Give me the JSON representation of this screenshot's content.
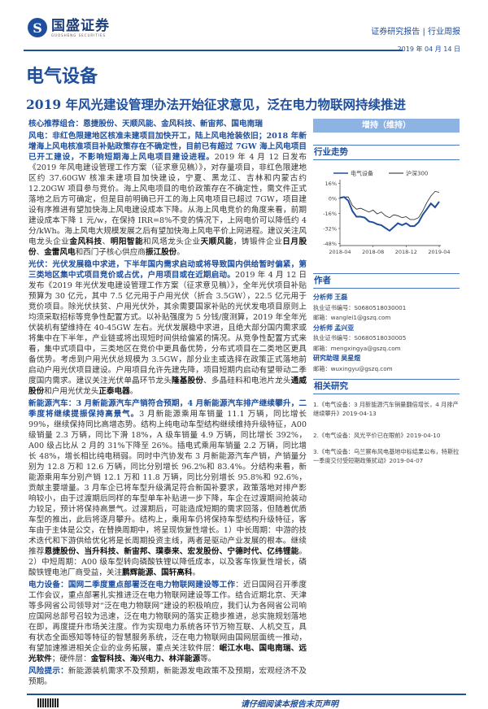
{
  "header": {
    "logo_cn": "国盛证券",
    "logo_en": "GUOSHENG SECURITIES",
    "report_type": "证券研究报告 | 行业周报",
    "date": "2019 年 04 月 14 日"
  },
  "industry": "电气设备",
  "headline": "2019 年风光建设管理办法开始征求意见，泛在电力物联网持续推进",
  "rating": "增持（维持）",
  "body": [
    [
      [
        "h",
        "核心推荐组合：恩捷股份、天顺风能、金风科技、新宙邦、国电南瑞"
      ]
    ],
    [
      [
        "h",
        "风电：非红色限建地区核准未建项目加快开工，陆上风电抢装依旧；2018 年新增海上风电核准项目补贴政策存在不确定性，目前已有超过 7GW 海上风电项目已开工建设，不影响短期海上风电项目建设进程。"
      ],
      [
        "n",
        "2019 年 4 月 12 日发布《2019 年风电建设管理工作方案（征求意见稿）》，对存量项目，非红色限建地区约 37.60GW 核准未建项目加快建设，宁夏、黑龙江、吉林和内蒙古约 12.20GW 项目参与竞价。海上风电项目的电价政策存在不确定性，需文件正式落地之后方可确定，但是目前明确已开工的海上风电项目已超过 7GW，项目建设有序推进有望加快海上风电建设成本下降。从海上风电竞价的角度来看，前期建设成本下降 1 元/w，在保持 IRR=8%不变的情况下，上网电价可以降低约 4 分/kWh。海上风电大规模发展之后有望加快海上风电平价上网进程。建议关注风电龙头企业"
      ],
      [
        "b",
        "金风科技"
      ],
      [
        "n",
        "、"
      ],
      [
        "b",
        "明阳智能"
      ],
      [
        "n",
        "和风塔龙头企业"
      ],
      [
        "b",
        "天顺风能"
      ],
      [
        "n",
        "，铸锻件企业"
      ],
      [
        "b",
        "日月股份"
      ],
      [
        "n",
        "、"
      ],
      [
        "b",
        "金雷风电"
      ],
      [
        "n",
        "和西门子核心供应商"
      ],
      [
        "b",
        "振江股份"
      ],
      [
        "n",
        "。"
      ]
    ],
    [
      [
        "h",
        "光伏：光伏发展稳中求进，下半年国内需求启动或将导致国内供给暂时偏紧，第三类地区集中式项目竞价或占优，户用项目或在近期启动。"
      ],
      [
        "n",
        "2019 年 4 月 12 日发布《2019 年光伏发电建设管理工作方案（征求意见稿）》，全年光伏项目补贴预算为 30 亿元，其中 7.5 亿元用于户用光伏（折合 3.5GW），22.5 亿元用于竞价项目。除光伏扶贫、户用光伏外，其余需要国家补贴的光伏发电项目原则上均须采取招标等竞争性配置方式。以补贴强度为 5 分钱/度测算，2019 年全年光伏装机有望维持在 40-45GW 左右。光伏发展稳中求进，且绝大部分国内需求或将集中在下半年，产业链或将出现短时间供给偏紧的情况。从竞争性配置方式来看，集中式项目中，三类地区在竞价中更具备优势，分布式项目在二类地区更具备优势。考虑到户用光伏总规模为 3.5GW，部分业主或选择在政策正式落地前启动户用光伏项目建设。户用项目允许先建先降，项目短期内启动有望带动二季度国内需求。建议关注光伏单晶环节龙头"
      ],
      [
        "b",
        "隆基股份"
      ],
      [
        "n",
        "、多晶硅料和电池片龙头"
      ],
      [
        "b",
        "通威股份"
      ],
      [
        "n",
        "和户用光伏龙头"
      ],
      [
        "b",
        "正泰电器"
      ],
      [
        "n",
        "。"
      ]
    ],
    [
      [
        "h",
        "新能源汽车：3 月新能源汽车产销符合预期，4 月新能源汽车排产继续攀升，二季度将继续提振保持高景气。"
      ],
      [
        "n",
        "3 月新能源乘用车销量 11.1 万辆，同比增长 99%，继续保持同比高增态势。结构上纯电动车型结构继续维持升级特征，A00 级销量 2.3 万辆，同比下滑 18%，A 级车销量 4.9 万辆，同比增长 392%，A00 级占比从 2 月的 31%下降至 26%。插电式乘用车销量 2.2 万辆，同比增长 48%，增长相比纯电稍弱。同时中汽协发布 3 月新能源汽车产销，产销量分别为 12.8 万和 12.6 万辆，同比分别增长 96.2%和 83.4%。分结构来看，新能源乘用车分别产销 12.1 万和 11.8 万辆，同比分别增长 95.8%和 92.6%，贡献主要增量。3 月车企已将车型升级满足符合新国补要求，政策落地对排产影响较小，由于过渡期后同样的车型单车补贴进一步下降，车企在过渡期间抢装动力较足，预计将保持高景气。过渡期后，可能造成短期的需求回落，但随着优质车型的推出，此后将逐月攀升。结构上，乘用车仍将保持车型结构升级特征，客车由于主体是公交，在替换周期中，将呈现恢复性增长。1）中长周期：中游的技术迭代和下游供给优化将是长周期投资主线，两者是驱动产业发展的根本。继续推荐"
      ],
      [
        "b",
        "恩捷股份、当升科技、新宙邦、璞泰来、宏发股份、宁德时代、亿纬锂能"
      ],
      [
        "n",
        "。2）中短周期：A00 级车型转向磷酸铁锂以降低成本，以及客车恢复性增长，磷酸铁锂电池厂商受益，关注"
      ],
      [
        "b",
        "鹏辉能源、国轩高科"
      ],
      [
        "n",
        "。"
      ]
    ],
    [
      [
        "h",
        "电力设备：国网二季度重点部署泛在电力物联网建设等工作"
      ],
      [
        "n",
        "：近日国网召开季度工作会议，重点部署扎实推进泛在电力物联网建设等工作。结合近期北京、天津等多网省公司领导对“泛在电力物联网”建设的积极响应，我们认为各网省公司响应国网总部号召较为迅速，泛在电力物联网的落实正稳步推进，总实施规划落地在即，再度提升市场关注度。作为实现电力系统各环节万物互联、人机交互，具有状态全面感知等特征的智慧服务系统，泛在电力物联网由国网层面统一推动，有望加速推进相关企业的业务拓展，重点关注软件层："
      ],
      [
        "b",
        "岷江水电、国电南瑞、远光软件"
      ],
      [
        "n",
        "；硬件层："
      ],
      [
        "b",
        "金智科技、海兴电力、林洋能源"
      ],
      [
        "n",
        "等。"
      ]
    ],
    [
      [
        "h",
        "风险提示："
      ],
      [
        "n",
        "新能源装机需求不及预期，新能源发电政策不及预期，宏观经济不及预期。"
      ]
    ]
  ],
  "sidebar": {
    "trend_title": "行业走势",
    "authors_title": "作者",
    "authors": [
      {
        "role": "分析师",
        "name": "王磊",
        "cert": "执业证书编号：S0680518030001",
        "email": "邮箱：wanglei1@gszq.com"
      },
      {
        "role": "分析师",
        "name": "孟兴亚",
        "cert": "执业证书编号：S0680518030005",
        "email": "邮箱：mengxingya@gszq.com"
      },
      {
        "role": "研究助理",
        "name": "吴星煜",
        "email": "邮箱：wuxingyu@gszq.com"
      }
    ],
    "related_title": "相关研究",
    "related": [
      "1.《电气设备：3 月新能源汽车销量翻倍增长，4 月排产继续攀升》2019-04-13",
      "2.《电气设备：风光平价已在眼前》2019-04-10",
      "3.《电气设备：乌兰察布风电基地中标结果公布，特斯拉一季度交付受短期政策扰动》2019-04-07"
    ]
  },
  "chart_data": {
    "type": "line",
    "x": [
      "2018-04",
      "2018-05",
      "2018-05",
      "2018-06",
      "2018-06",
      "2018-07",
      "2018-07",
      "2018-08",
      "2018-08",
      "2018-09",
      "2018-09",
      "2018-10",
      "2018-10",
      "2018-11",
      "2018-11",
      "2018-12",
      "2018-12",
      "2019-01",
      "2019-01",
      "2019-02",
      "2019-02",
      "2019-03",
      "2019-03",
      "2019-04",
      "2019-04"
    ],
    "series": [
      {
        "name": "电气设备",
        "color": "#1f4e9c",
        "values": [
          0,
          2,
          -3,
          -13,
          -20,
          -19,
          -21,
          -24,
          -26,
          -27,
          -29,
          -31,
          -35,
          -30,
          -27,
          -28,
          -27,
          -29,
          -30,
          -25,
          -18,
          -11,
          -6,
          -9,
          -4
        ]
      },
      {
        "name": "沪深300",
        "color": "#222222",
        "values": [
          0,
          2,
          1,
          -7,
          -12,
          -10,
          -13,
          -14,
          -13,
          -16,
          -15,
          -18,
          -21,
          -17,
          -19,
          -20,
          -20,
          -22,
          -23,
          -20,
          -14,
          -4,
          2,
          8,
          6
        ]
      }
    ],
    "xticks": [
      "2018-04",
      "2018-08",
      "2018-12",
      "2019-04"
    ],
    "yticks": [
      "16%",
      "0%",
      "-16%",
      "-32%",
      "-48%"
    ],
    "ylim": [
      -48,
      16
    ],
    "legend": "top"
  },
  "footer": {
    "disclaimer": "请仔细阅读本报告末页声明"
  }
}
